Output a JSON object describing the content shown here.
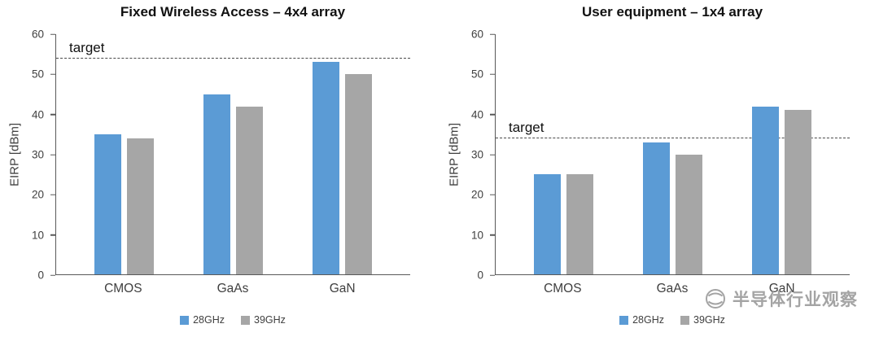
{
  "chart_data": [
    {
      "type": "bar",
      "title": "Fixed Wireless Access – 4x4 array",
      "ylabel": "EIRP [dBm]",
      "ylim": [
        0,
        60
      ],
      "yticks": [
        0,
        10,
        20,
        30,
        40,
        50,
        60
      ],
      "categories": [
        "CMOS",
        "GaAs",
        "GaN"
      ],
      "series": [
        {
          "name": "28GHz",
          "color": "#5B9BD5",
          "values": [
            35,
            45,
            53
          ]
        },
        {
          "name": "39GHz",
          "color": "#A6A6A6",
          "values": [
            34,
            42,
            50
          ]
        }
      ],
      "target_line": {
        "label": "target",
        "value": 54
      },
      "legend_position": "bottom",
      "grid": false
    },
    {
      "type": "bar",
      "title": "User equipment – 1x4 array",
      "ylabel": "EIRP [dBm]",
      "ylim": [
        0,
        60
      ],
      "yticks": [
        0,
        10,
        20,
        30,
        40,
        50,
        60
      ],
      "categories": [
        "CMOS",
        "GaAs",
        "GaN"
      ],
      "series": [
        {
          "name": "28GHz",
          "color": "#5B9BD5",
          "values": [
            25,
            33,
            42
          ]
        },
        {
          "name": "39GHz",
          "color": "#A6A6A6",
          "values": [
            25,
            30,
            41
          ]
        }
      ],
      "target_line": {
        "label": "target",
        "value": 34
      },
      "legend_position": "bottom",
      "grid": false
    }
  ],
  "watermark": {
    "text": "半导体行业观察",
    "icon": "ripple-logo-icon"
  }
}
